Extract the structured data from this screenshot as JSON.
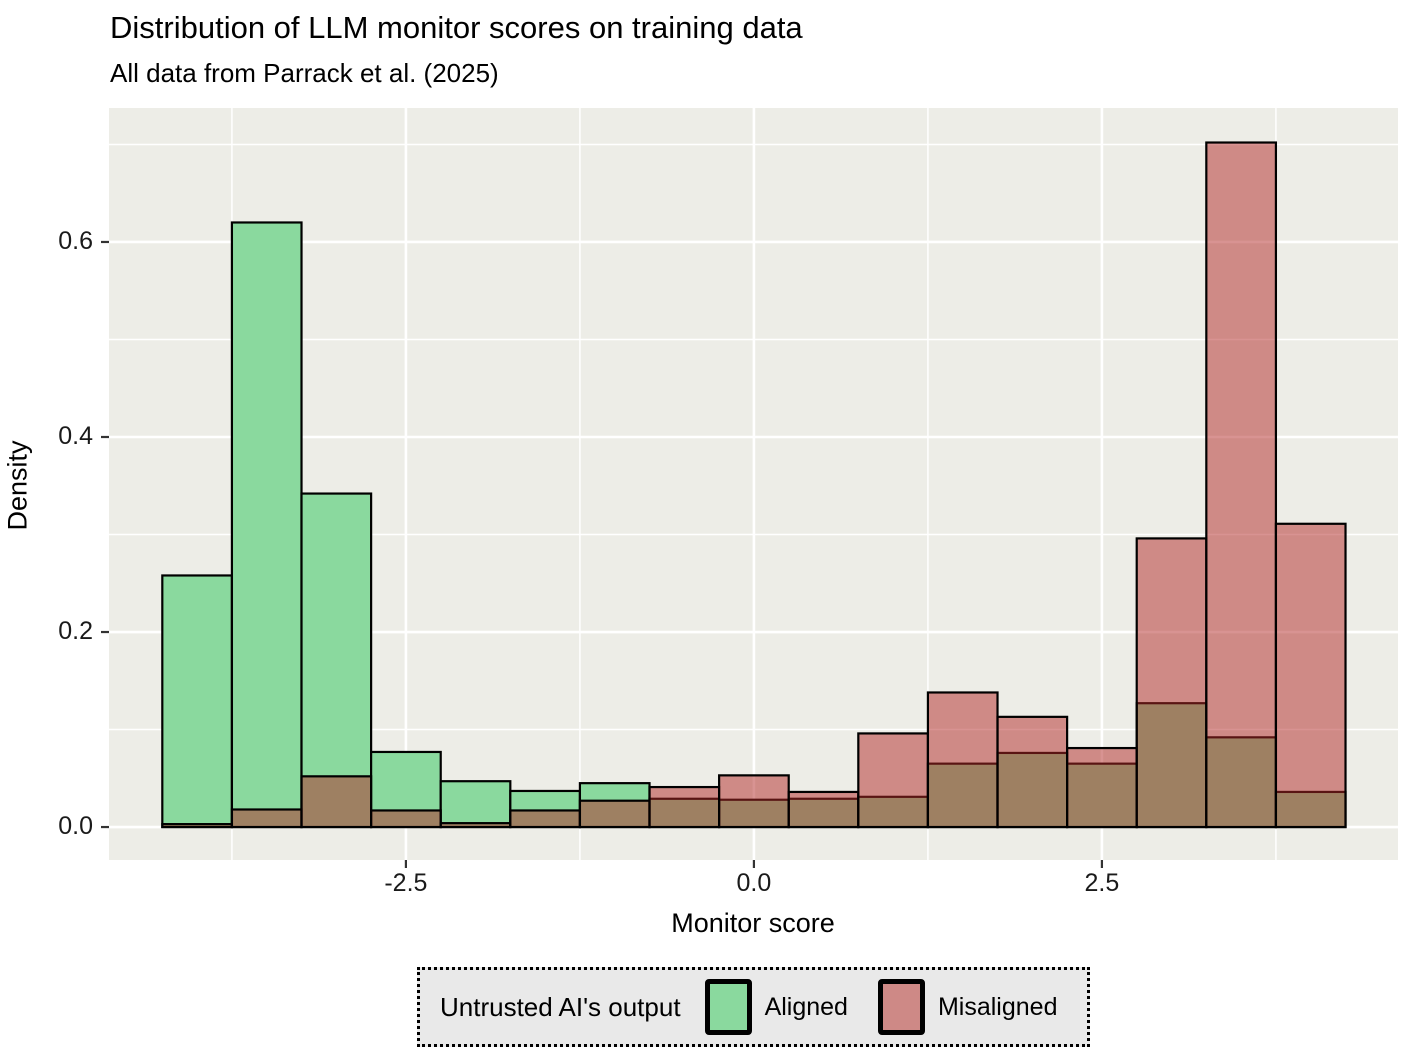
{
  "title": "Distribution of LLM monitor scores on training data",
  "subtitle": "All data from Parrack et al. (2025)",
  "chart_data": {
    "type": "histogram",
    "title": "Distribution of LLM monitor scores on training data",
    "subtitle": "All data from Parrack et al. (2025)",
    "xlabel": "Monitor score",
    "ylabel": "Density",
    "bin_start": -4.25,
    "bin_width": 0.5,
    "bin_count": 17,
    "series": [
      {
        "name": "Aligned",
        "fill": "#8ad99e",
        "densities": [
          0.258,
          0.62,
          0.342,
          0.077,
          0.047,
          0.037,
          0.045,
          0.029,
          0.028,
          0.029,
          0.031,
          0.065,
          0.076,
          0.065,
          0.127,
          0.092,
          0.036
        ]
      },
      {
        "name": "Misaligned",
        "fill": "rgba(178,40,38,0.5)",
        "densities": [
          0.003,
          0.018,
          0.052,
          0.017,
          0.004,
          0.017,
          0.027,
          0.041,
          0.053,
          0.036,
          0.096,
          0.138,
          0.113,
          0.081,
          0.296,
          0.702,
          0.311
        ]
      }
    ],
    "x_ticks": [
      "-2.5",
      "0.0",
      "2.5"
    ],
    "x_tick_values": [
      -2.5,
      0.0,
      2.5
    ],
    "y_ticks": [
      "0.0",
      "0.2",
      "0.4",
      "0.6"
    ],
    "y_tick_values": [
      0.0,
      0.2,
      0.4,
      0.6
    ],
    "x_minor_gridlines": [
      -3.75,
      -1.25,
      1.25,
      3.75
    ],
    "y_minor_gridlines": [
      0.1,
      0.3,
      0.5,
      0.7
    ],
    "xlim": [
      -4.633,
      4.627
    ],
    "ylim": [
      -0.0338,
      0.7374
    ],
    "grid": "white major and minor gridlines on gray panel",
    "legend_position": "bottom"
  },
  "legend": {
    "title": "Untrusted AI's output",
    "items": [
      {
        "label": "Aligned",
        "color": "#8ad99e"
      },
      {
        "label": "Misaligned",
        "color": "#ce8986"
      }
    ]
  },
  "colors": {
    "panel_bg": "#edede7",
    "gridline": "#ffffff",
    "bar_outline": "#000000",
    "aligned_fill": "#8ad99e",
    "misaligned_overlay": "rgba(178,40,38,0.5)",
    "misaligned_apparent": "#cf8a86",
    "overlap_apparent": "#9e8061",
    "tick_mark": "#333333",
    "legend_bg": "#e9e9e9"
  }
}
